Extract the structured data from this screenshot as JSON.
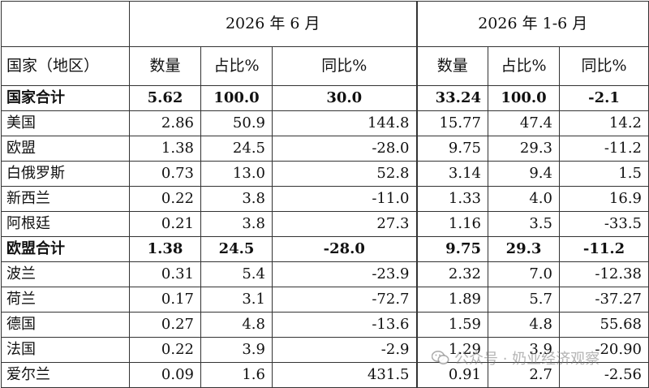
{
  "header": {
    "period_month": "2026 年 6 月",
    "period_ytd": "2026 年 1-6 月",
    "country_col": "国家（地区）",
    "cols": [
      "数量",
      "占比%",
      "同比%",
      "数量",
      "占比%",
      "同比%"
    ]
  },
  "rows": [
    {
      "name": "国家合计",
      "bold": true,
      "v": [
        "5.62",
        "100.0",
        "30.0",
        "33.24",
        "100.0",
        "-2.1"
      ]
    },
    {
      "name": "美国",
      "bold": false,
      "v": [
        "2.86",
        "50.9",
        "144.8",
        "15.77",
        "47.4",
        "14.2"
      ]
    },
    {
      "name": "欧盟",
      "bold": false,
      "v": [
        "1.38",
        "24.5",
        "-28.0",
        "9.75",
        "29.3",
        "-11.2"
      ]
    },
    {
      "name": "白俄罗斯",
      "bold": false,
      "v": [
        "0.73",
        "13.0",
        "52.8",
        "3.14",
        "9.4",
        "1.5"
      ]
    },
    {
      "name": "新西兰",
      "bold": false,
      "v": [
        "0.22",
        "3.8",
        "-11.0",
        "1.33",
        "4.0",
        "16.9"
      ]
    },
    {
      "name": "阿根廷",
      "bold": false,
      "v": [
        "0.21",
        "3.8",
        "27.3",
        "1.16",
        "3.5",
        "-33.5"
      ]
    },
    {
      "name": "欧盟合计",
      "bold": true,
      "v": [
        "1.38",
        "24.5",
        "-28.0",
        "9.75",
        "29.3",
        "-11.2"
      ]
    },
    {
      "name": "波兰",
      "bold": false,
      "v": [
        "0.31",
        "5.4",
        "-23.9",
        "2.32",
        "7.0",
        "-12.38"
      ]
    },
    {
      "name": "荷兰",
      "bold": false,
      "v": [
        "0.17",
        "3.1",
        "-72.7",
        "1.89",
        "5.7",
        "-37.27"
      ]
    },
    {
      "name": "德国",
      "bold": false,
      "v": [
        "0.27",
        "4.8",
        "-13.6",
        "1.59",
        "4.8",
        "55.68"
      ]
    },
    {
      "name": "法国",
      "bold": false,
      "v": [
        "0.22",
        "3.9",
        "-2.9",
        "1.29",
        "3.9",
        "-20.90"
      ]
    },
    {
      "name": "爱尔兰",
      "bold": false,
      "v": [
        "0.09",
        "1.6",
        "431.5",
        "0.91",
        "2.7",
        "-2.56"
      ]
    }
  ],
  "watermark": {
    "text": "公众号 · 奶业经济观察",
    "icon": "wechat-icon"
  }
}
